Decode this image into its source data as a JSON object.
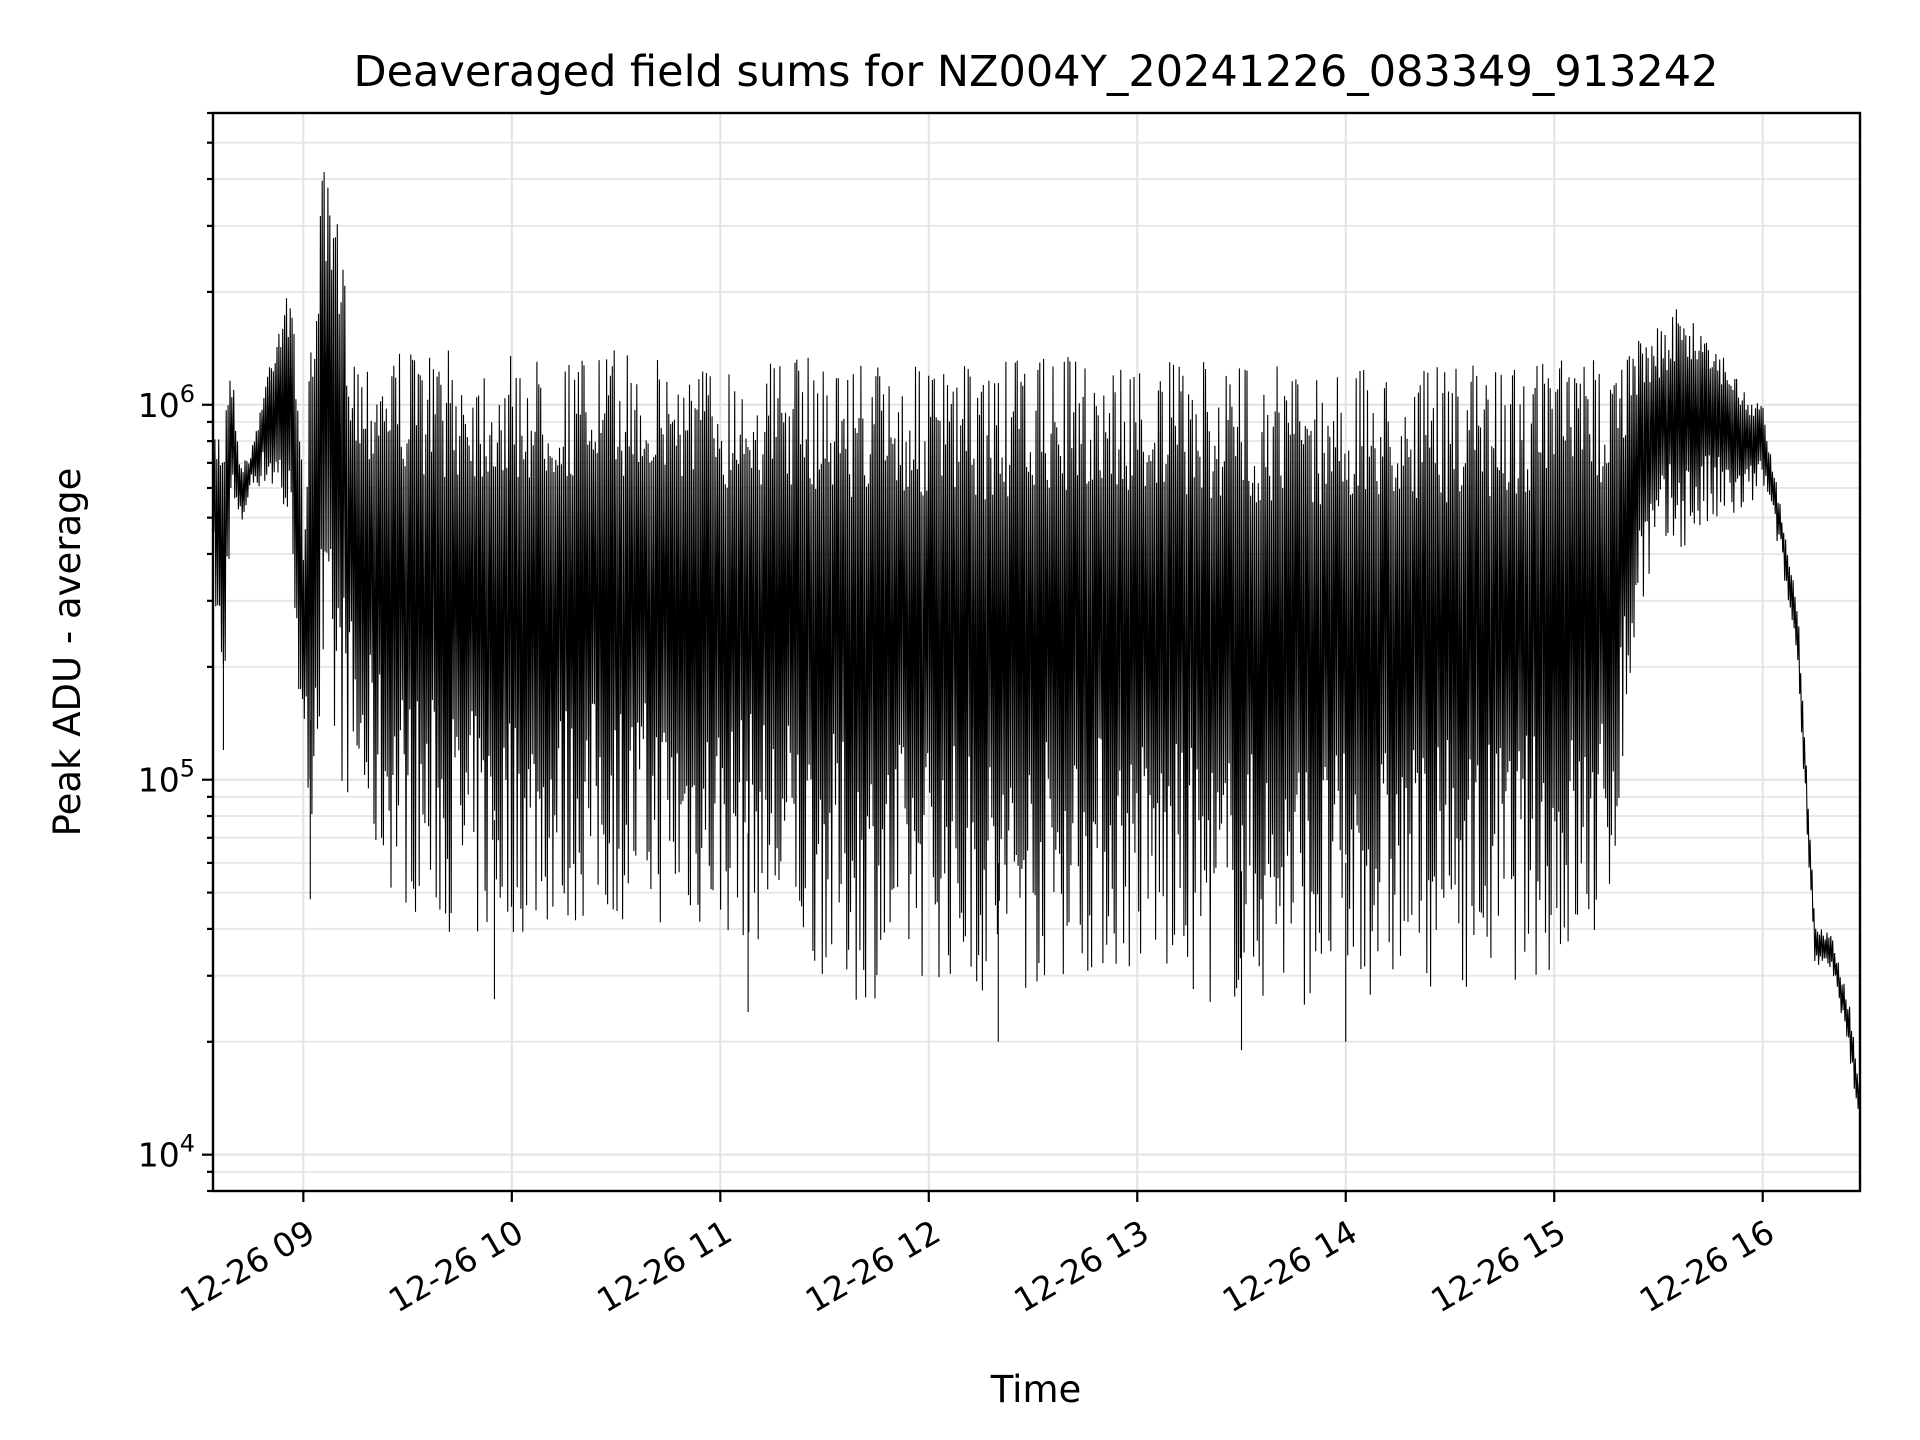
{
  "chart_data": {
    "type": "line",
    "title": "Deaveraged field sums for NZ004Y_20241226_083349_913242",
    "xlabel": "Time",
    "ylabel": "Peak ADU - average",
    "yscale": "log",
    "grid": true,
    "xlim": [
      "2024-12-26 08:34",
      "2024-12-26 16:28"
    ],
    "ylim": [
      8000,
      6000000
    ],
    "x_ticks": [
      {
        "value": "2024-12-26 09:00",
        "label": "12-26 09"
      },
      {
        "value": "2024-12-26 10:00",
        "label": "12-26 10"
      },
      {
        "value": "2024-12-26 11:00",
        "label": "12-26 11"
      },
      {
        "value": "2024-12-26 12:00",
        "label": "12-26 12"
      },
      {
        "value": "2024-12-26 13:00",
        "label": "12-26 13"
      },
      {
        "value": "2024-12-26 14:00",
        "label": "12-26 14"
      },
      {
        "value": "2024-12-26 15:00",
        "label": "12-26 15"
      },
      {
        "value": "2024-12-26 16:00",
        "label": "12-26 16"
      }
    ],
    "y_ticks": [
      {
        "value": 10000,
        "base": "10",
        "exp": "4"
      },
      {
        "value": 100000,
        "base": "10",
        "exp": "5"
      },
      {
        "value": 1000000,
        "base": "10",
        "exp": "6"
      }
    ],
    "series": [
      {
        "color": "#000000",
        "x": [
          "2024-12-26 08:34",
          "2024-12-26 08:37",
          "2024-12-26 08:39",
          "2024-12-26 08:42",
          "2024-12-26 08:45",
          "2024-12-26 08:50",
          "2024-12-26 08:55",
          "2024-12-26 08:58",
          "2024-12-26 09:00",
          "2024-12-26 09:05",
          "2024-12-26 09:10",
          "2024-12-26 09:15",
          "2024-12-26 09:20",
          "2024-12-26 09:25",
          "2024-12-26 09:30",
          "2024-12-26 09:40",
          "2024-12-26 09:50",
          "2024-12-26 10:00",
          "2024-12-26 10:15",
          "2024-12-26 10:30",
          "2024-12-26 10:45",
          "2024-12-26 11:00",
          "2024-12-26 11:20",
          "2024-12-26 11:40",
          "2024-12-26 12:00",
          "2024-12-26 12:20",
          "2024-12-26 12:40",
          "2024-12-26 13:00",
          "2024-12-26 13:20",
          "2024-12-26 13:40",
          "2024-12-26 14:00",
          "2024-12-26 14:20",
          "2024-12-26 14:40",
          "2024-12-26 15:00",
          "2024-12-26 15:15",
          "2024-12-26 15:25",
          "2024-12-26 15:35",
          "2024-12-26 15:45",
          "2024-12-26 15:55",
          "2024-12-26 16:00",
          "2024-12-26 16:05",
          "2024-12-26 16:10",
          "2024-12-26 16:15",
          "2024-12-26 16:20",
          "2024-12-26 16:25",
          "2024-12-26 16:28"
        ],
        "envelope_high": [
          850000,
          950000,
          1400000,
          700000,
          750000,
          1300000,
          2200000,
          1500000,
          600000,
          4500000,
          3100000,
          1400000,
          1400000,
          1500000,
          1400000,
          1400000,
          1400000,
          1350000,
          1350000,
          1400000,
          1350000,
          1300000,
          1350000,
          1350000,
          1250000,
          1300000,
          1350000,
          1300000,
          1300000,
          1300000,
          1250000,
          1250000,
          1300000,
          1350000,
          1350000,
          1500000,
          1800000,
          1600000,
          1100000,
          1000000,
          550000,
          300000,
          42000,
          38000,
          25000,
          15000
        ],
        "envelope_low": [
          350000,
          120000,
          500000,
          450000,
          600000,
          600000,
          450000,
          250000,
          60000,
          110000,
          100000,
          80000,
          60000,
          50000,
          45000,
          40000,
          35000,
          38000,
          40000,
          42000,
          40000,
          38000,
          35000,
          25000,
          30000,
          25000,
          30000,
          30000,
          25000,
          25000,
          25000,
          28000,
          28000,
          30000,
          35000,
          300000,
          400000,
          450000,
          500000,
          600000,
          400000,
          200000,
          32000,
          30000,
          18000,
          11000
        ],
        "extreme_low": [
          {
            "x": "2024-12-26 08:37",
            "y": 120000
          },
          {
            "x": "2024-12-26 09:02",
            "y": 48000
          },
          {
            "x": "2024-12-26 09:55",
            "y": 26000
          },
          {
            "x": "2024-12-26 11:08",
            "y": 24000
          },
          {
            "x": "2024-12-26 12:20",
            "y": 20000
          },
          {
            "x": "2024-12-26 13:30",
            "y": 19000
          },
          {
            "x": "2024-12-26 14:00",
            "y": 20000
          }
        ]
      }
    ]
  }
}
